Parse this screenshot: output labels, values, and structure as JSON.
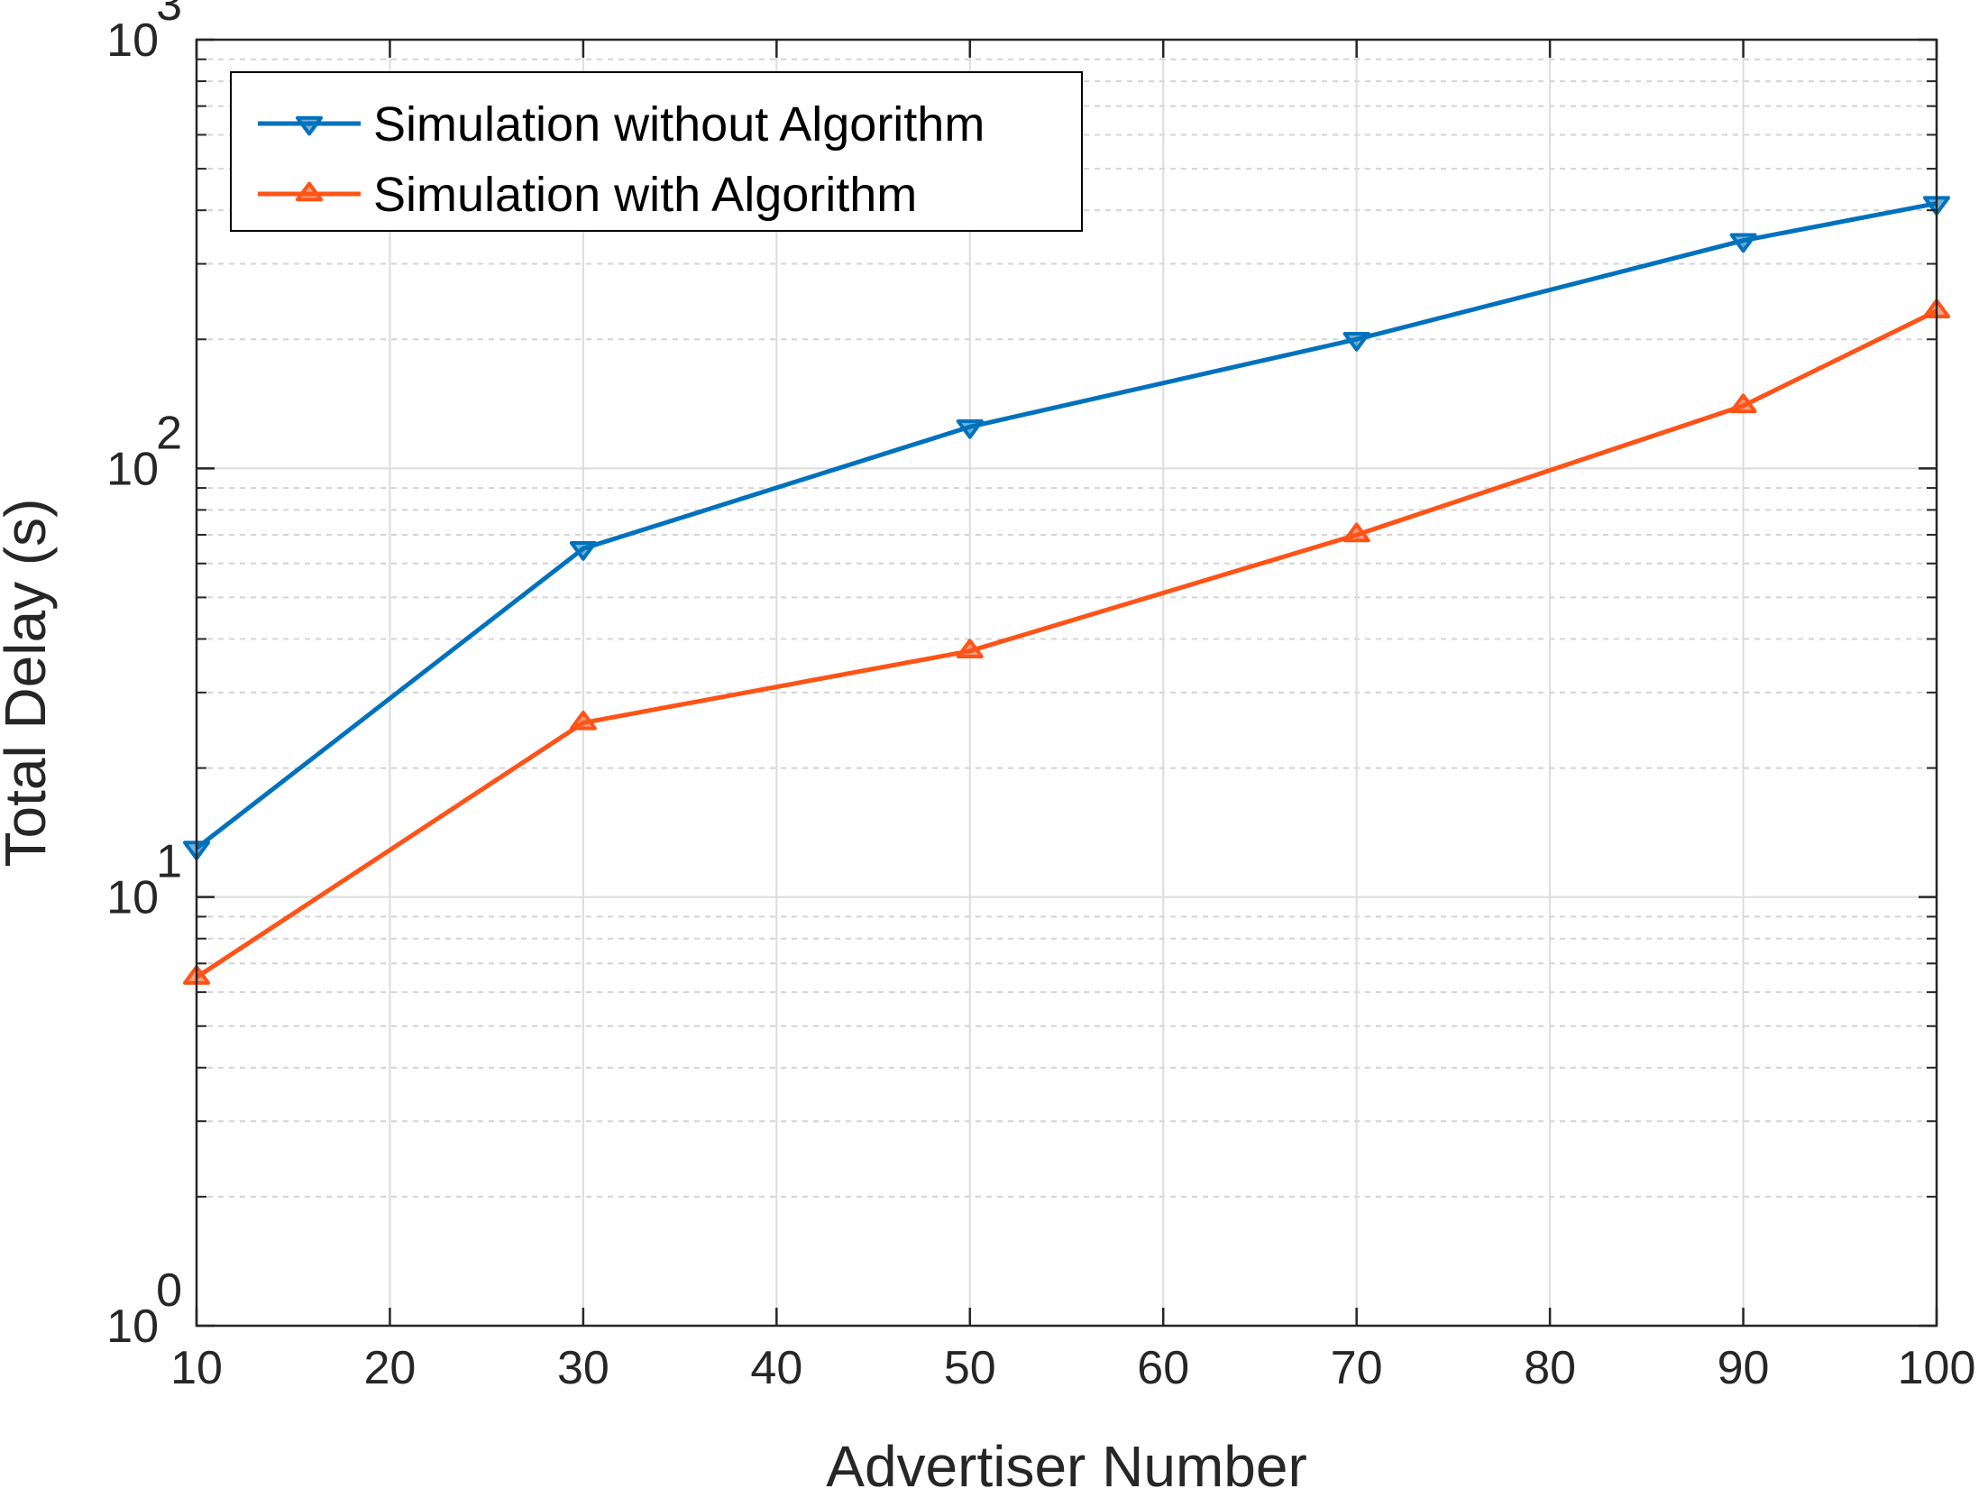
{
  "chart_data": {
    "type": "line",
    "title": "",
    "xlabel": "Advertiser Number",
    "ylabel": "Total Delay (s)",
    "xlim": [
      10,
      100
    ],
    "ylim": [
      1,
      1000
    ],
    "yscale": "log",
    "grid": true,
    "legend_position": "top-left",
    "x_ticks": [
      "10",
      "20",
      "30",
      "40",
      "50",
      "60",
      "70",
      "80",
      "90",
      "100"
    ],
    "x_tick_values": [
      10,
      20,
      30,
      40,
      50,
      60,
      70,
      80,
      90,
      100
    ],
    "y_ticks": [
      {
        "value": 1,
        "base": "10",
        "exp": "0"
      },
      {
        "value": 10,
        "base": "10",
        "exp": "1"
      },
      {
        "value": 100,
        "base": "10",
        "exp": "2"
      },
      {
        "value": 1000,
        "base": "10",
        "exp": "3"
      }
    ],
    "x": [
      10,
      30,
      50,
      70,
      90,
      100
    ],
    "series": [
      {
        "name": "Simulation without Algorithm",
        "color": "#0072BD",
        "marker": "triangle-down",
        "values": [
          13,
          65,
          125,
          200,
          340,
          415
        ]
      },
      {
        "name": "Simulation with Algorithm",
        "color": "#FF5317",
        "marker": "triangle-up",
        "values": [
          6.5,
          25.5,
          37.5,
          70,
          140,
          233
        ]
      }
    ]
  }
}
